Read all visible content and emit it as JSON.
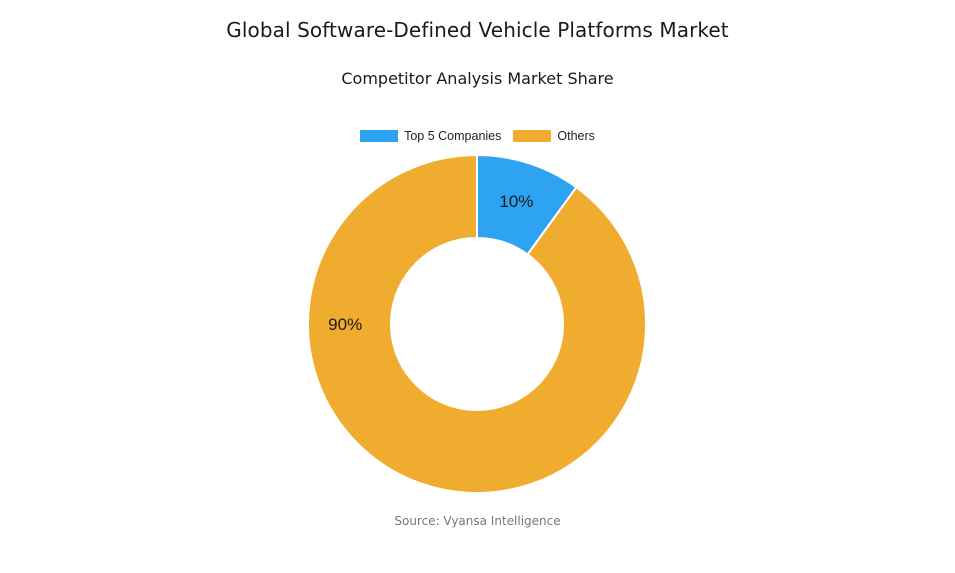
{
  "chart_data": {
    "type": "pie",
    "title": "Global Software-Defined Vehicle Platforms Market",
    "subtitle": "Competitor Analysis Market Share",
    "categories": [
      "Top 5 Companies",
      "Others"
    ],
    "values": [
      10,
      90
    ],
    "labels": [
      "10%",
      "90%"
    ],
    "colors": [
      "#2ea3f2",
      "#f0ac2e"
    ],
    "legend_position": "top-center",
    "donut": true,
    "source": "Source: Vyansa Intelligence"
  }
}
